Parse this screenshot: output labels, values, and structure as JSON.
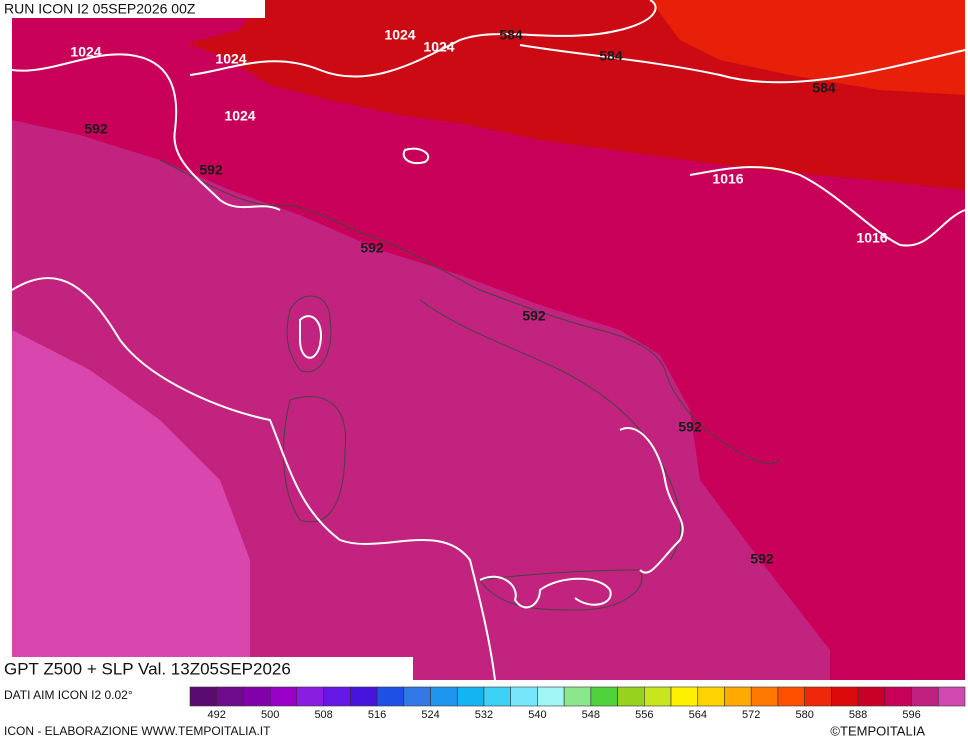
{
  "header": {
    "run": "RUN ICON I2 05SEP2026 00Z"
  },
  "map": {
    "labels": [
      "1024",
      "1024",
      "1024",
      "1024",
      "584",
      "584",
      "584",
      "592",
      "1024",
      "592",
      "1016",
      "1016",
      "592",
      "592",
      "592",
      "592"
    ]
  },
  "footer": {
    "title": "GPT Z500 + SLP Val. 13Z05SEP2026",
    "source": "DATI AIM ICON I2 0.02°",
    "credit": "ICON - ELABORAZIONE WWW.TEMPOITALIA.IT",
    "copyright": "©TEMPOITALIA"
  },
  "colorbar": {
    "labels": [
      492,
      500,
      508,
      516,
      524,
      532,
      540,
      548,
      556,
      564,
      572,
      580,
      588,
      596
    ],
    "colors": [
      "#5a0a6e",
      "#6e0a8c",
      "#8200aa",
      "#9a00c8",
      "#8a1ee0",
      "#6418e6",
      "#4614dc",
      "#1e50e6",
      "#3278e6",
      "#1e96f0",
      "#14b4f0",
      "#3cd2f5",
      "#78e6fa",
      "#a0f5f5",
      "#8ce68c",
      "#50d23c",
      "#96d21e",
      "#c8e61e",
      "#fff000",
      "#ffd200",
      "#ffaa00",
      "#ff7800",
      "#ff5000",
      "#f0280a",
      "#dc0a0a",
      "#c80028",
      "#c8005a",
      "#c02080",
      "#d048b0"
    ]
  }
}
